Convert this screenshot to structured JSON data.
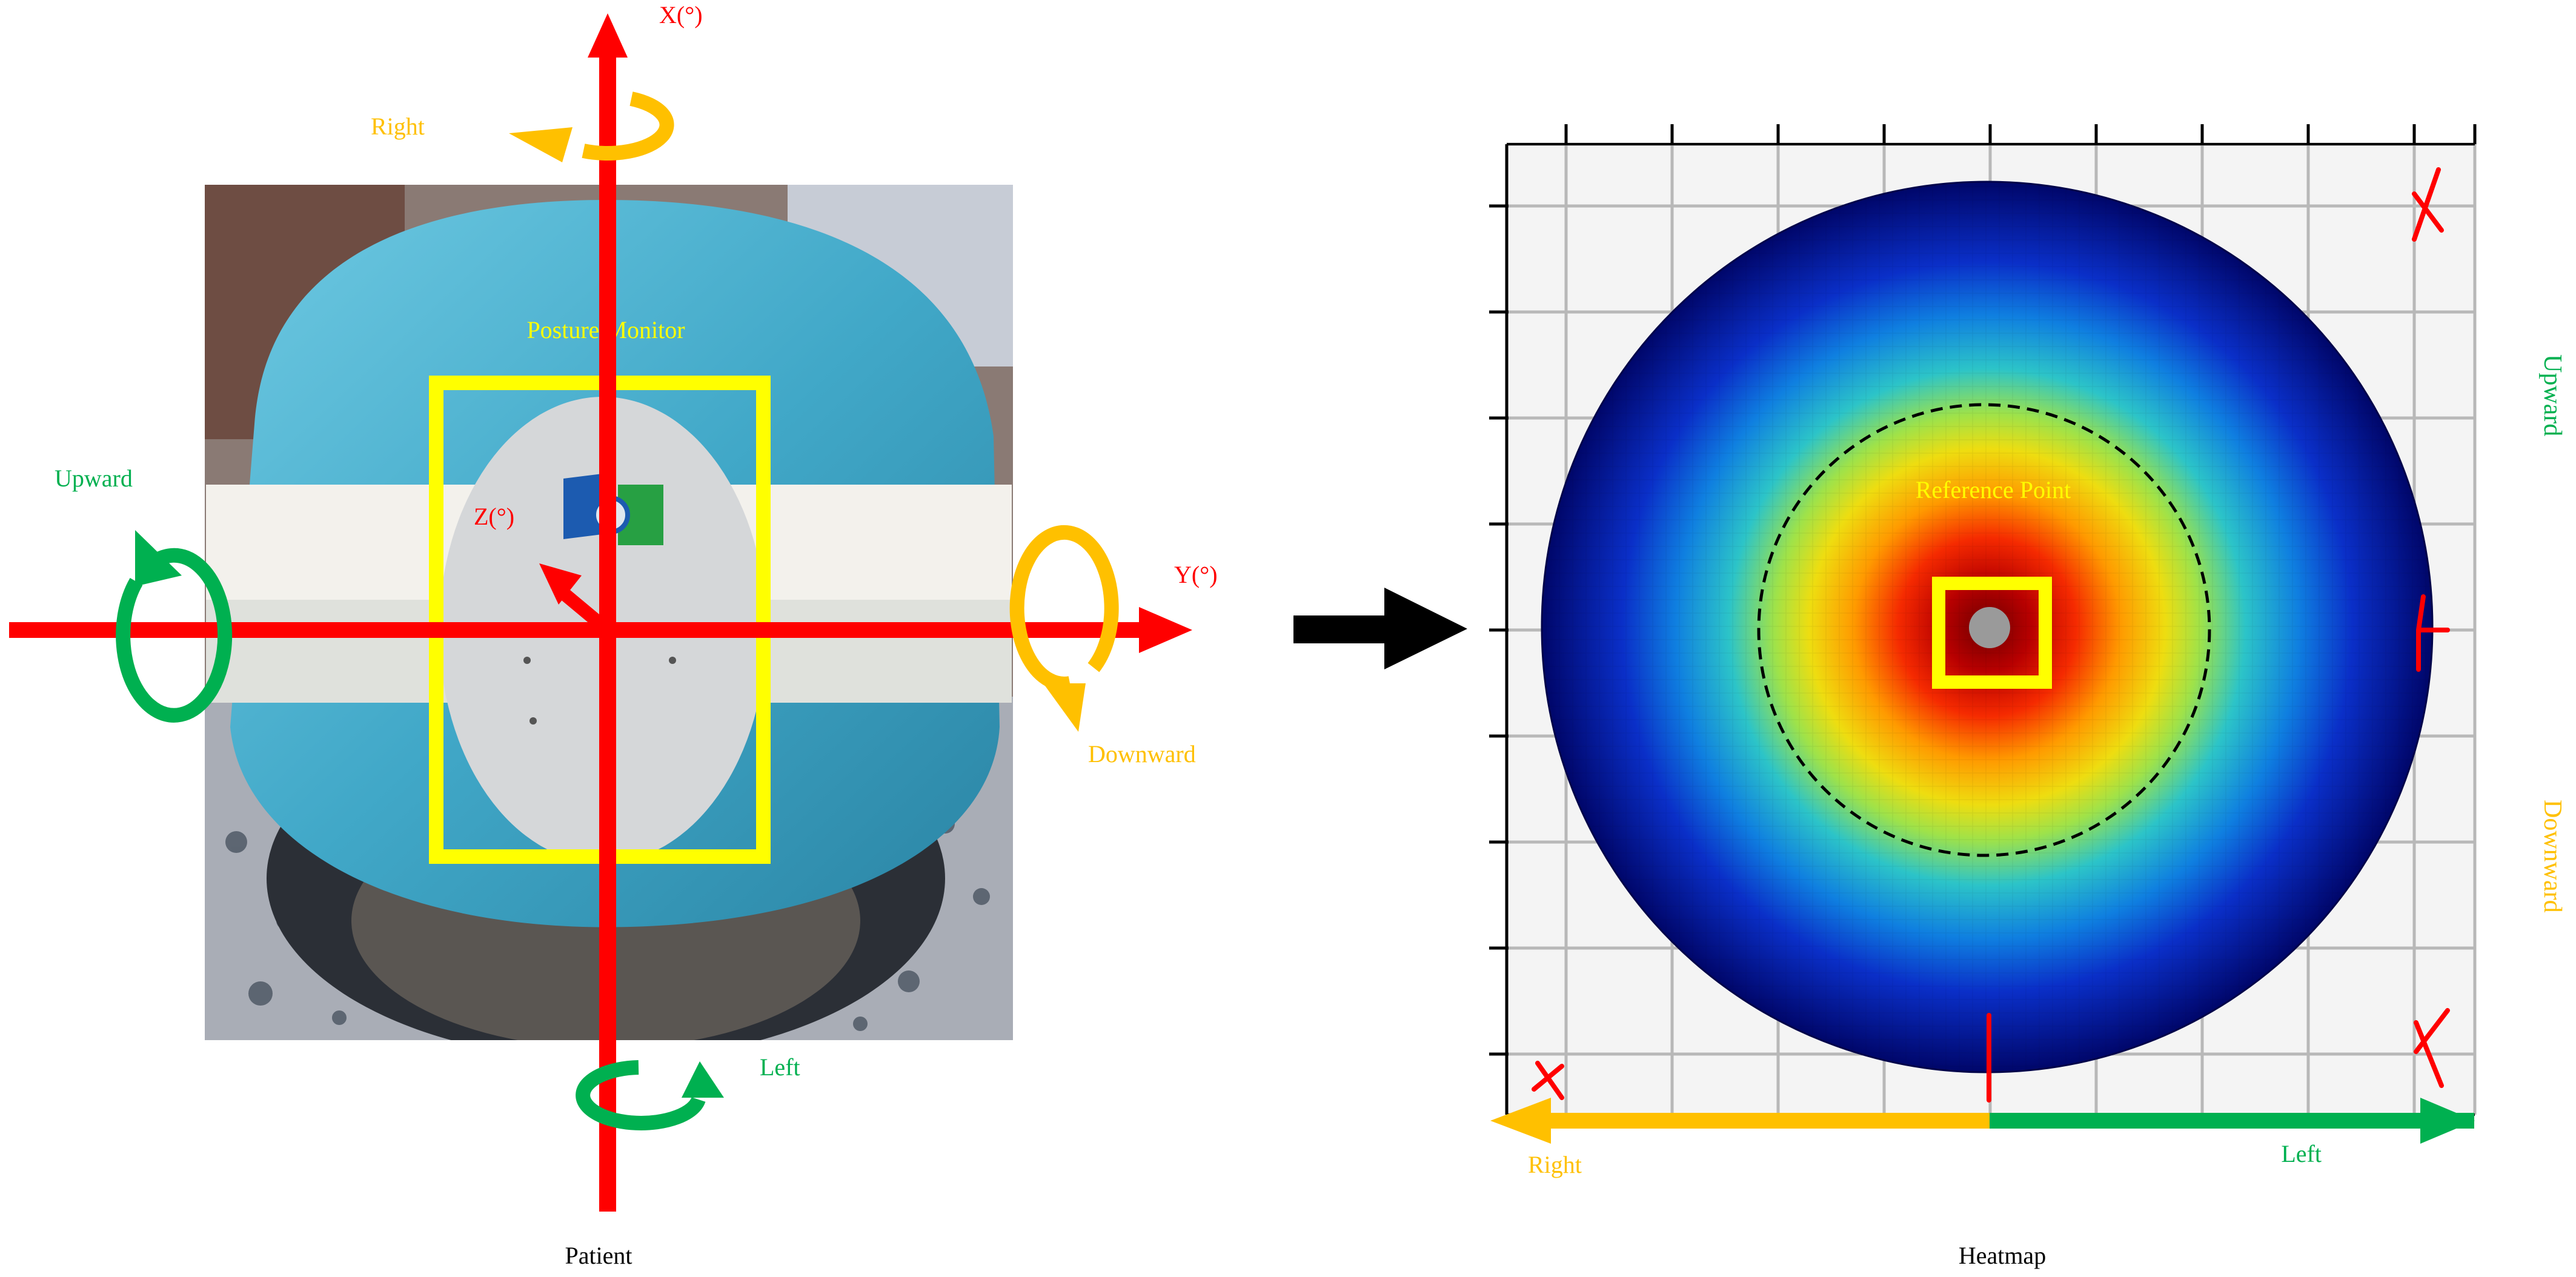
{
  "left_panel": {
    "caption": "Patient",
    "axis_x_label": "X(°)",
    "axis_y_label": "Y(°)",
    "axis_z_label": "Z(°)",
    "device_label": "Posture Monitor",
    "rotation_labels": {
      "right": "Right",
      "left": "Left",
      "upward": "Upward",
      "downward": "Downward"
    }
  },
  "right_panel": {
    "caption": "Heatmap",
    "reference_label": "Reference Point",
    "side_labels": {
      "upward": "Upward",
      "downward": "Downward"
    },
    "bottom_labels": {
      "right": "Right",
      "left": "Left"
    }
  },
  "colors": {
    "axis": "#ff0000",
    "green": "#00b050",
    "orange": "#ffc000",
    "yellow": "#ffff00",
    "arrow": "#000000"
  },
  "icons": [
    "curved-rotation-arrow-icon",
    "right-arrow-icon",
    "double-headed-arrow-icon"
  ]
}
